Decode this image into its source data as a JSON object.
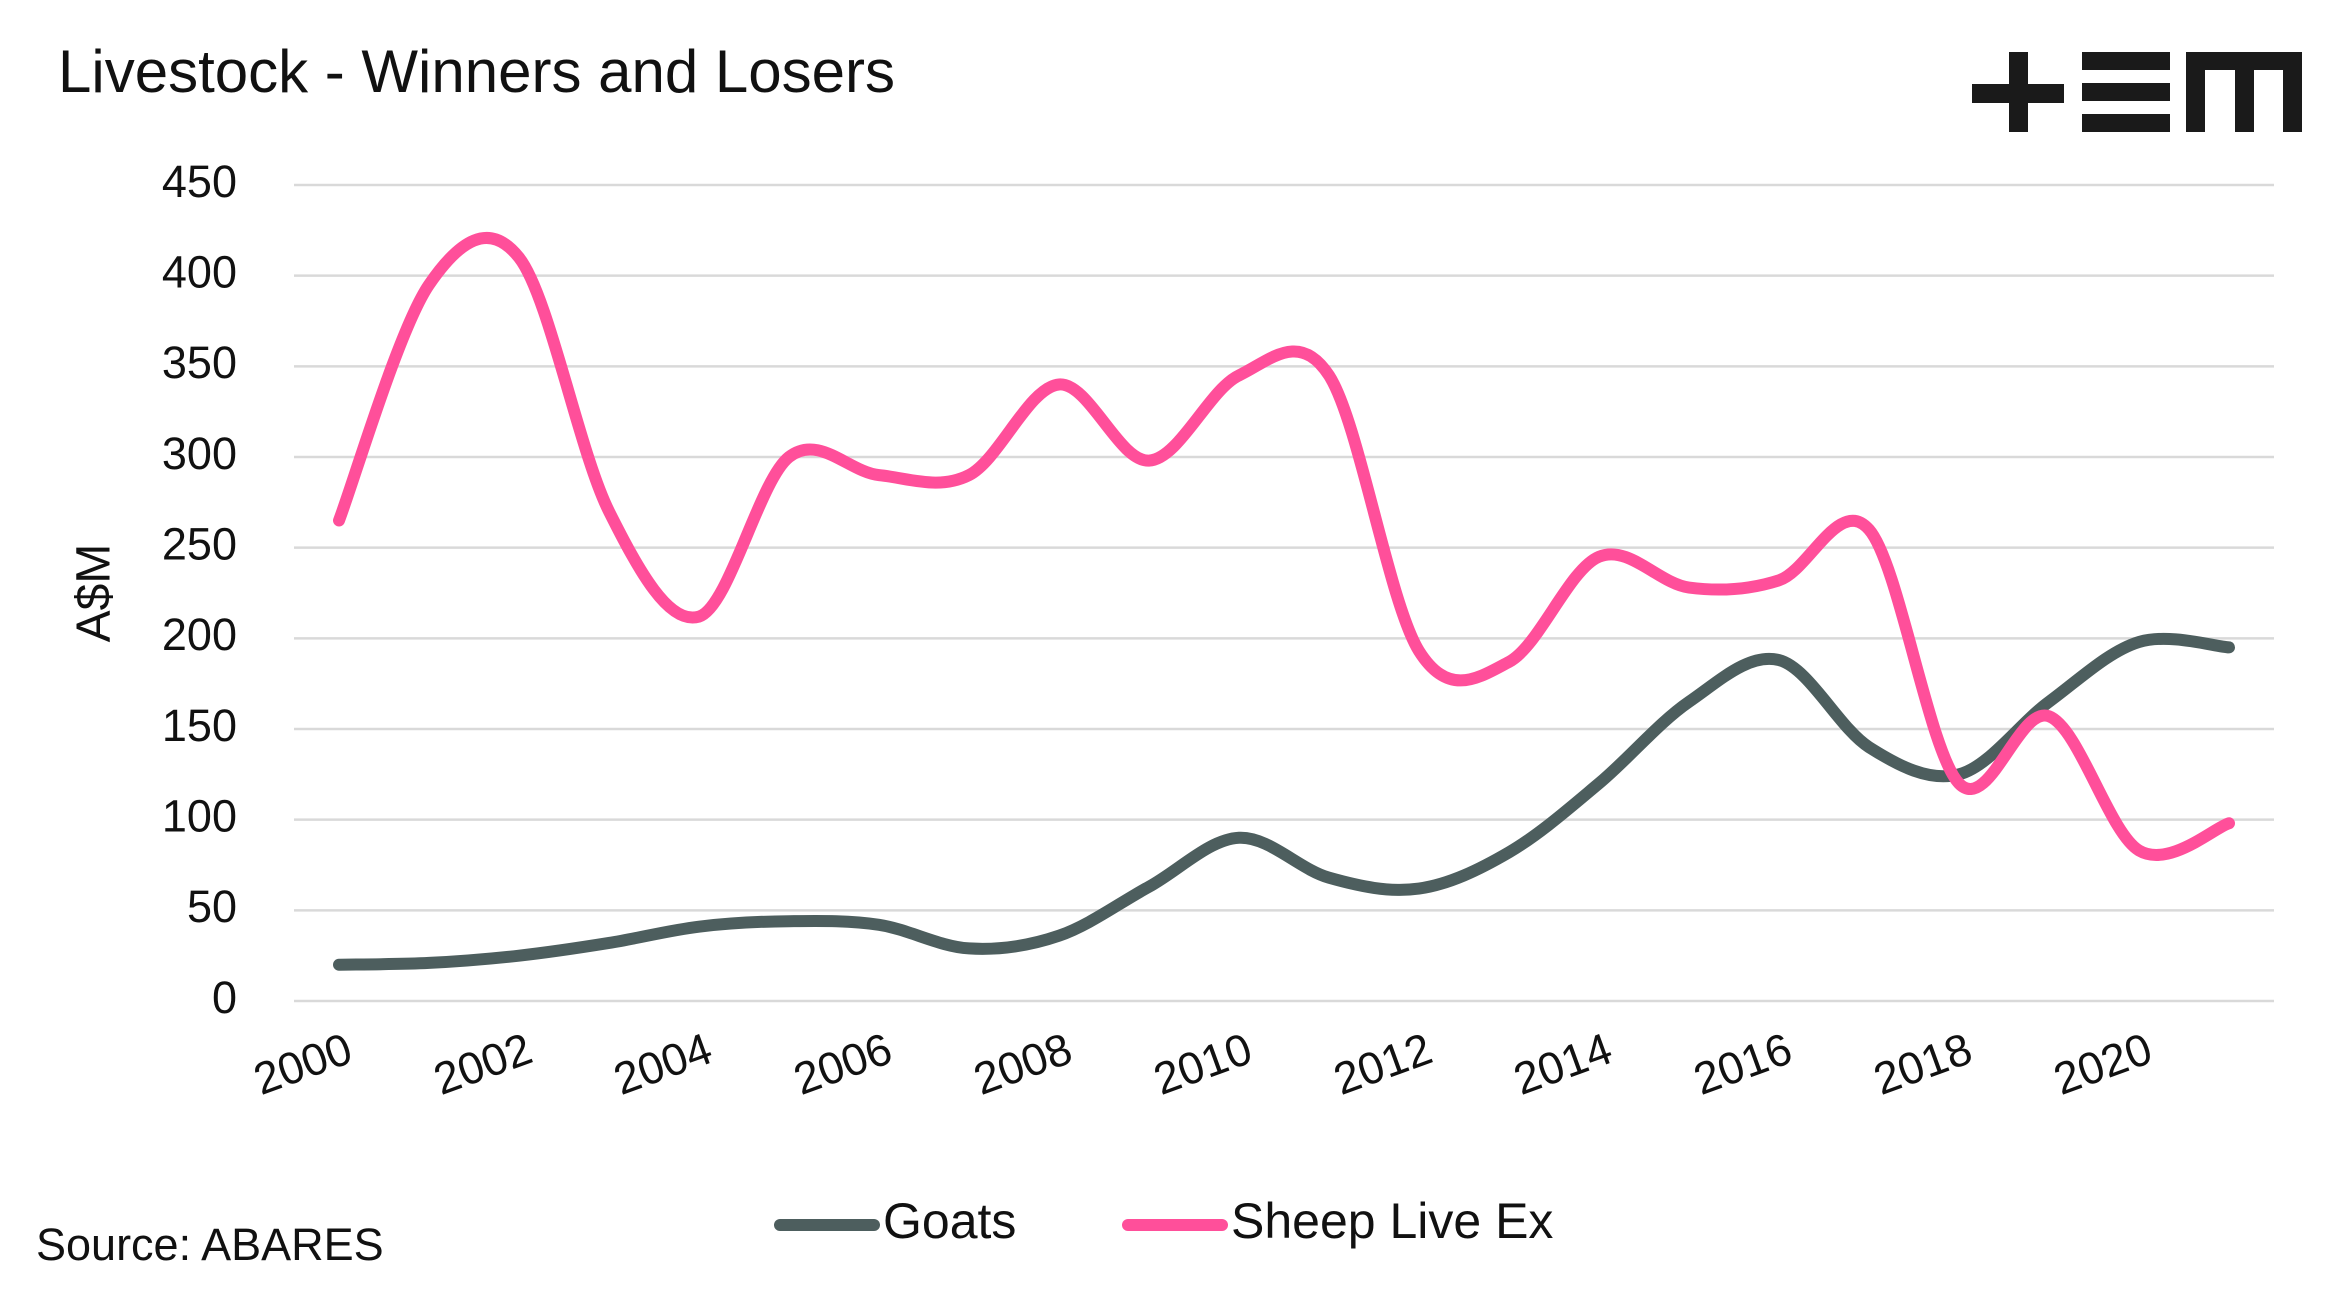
{
  "chart_data": {
    "type": "line",
    "title": "Livestock - Winners and Losers",
    "ylabel": "A$M",
    "source": "Source: ABARES",
    "categories": [
      "2000",
      null,
      "2002",
      null,
      "2004",
      null,
      "2006",
      null,
      "2008",
      null,
      "2010",
      null,
      "2012",
      null,
      "2014",
      null,
      "2016",
      null,
      "2018",
      null,
      "2020",
      null
    ],
    "series": [
      {
        "name": "Goats",
        "color": "#4d5e5e",
        "values": [
          20,
          21,
          25,
          32,
          41,
          44,
          42,
          29,
          36,
          63,
          90,
          68,
          62,
          82,
          120,
          165,
          188,
          140,
          125,
          165,
          198,
          195
        ]
      },
      {
        "name": "Sheep Live Ex",
        "color": "#ff4f9a",
        "values": [
          265,
          395,
          410,
          270,
          212,
          300,
          290,
          290,
          340,
          298,
          345,
          345,
          193,
          187,
          245,
          228,
          232,
          260,
          120,
          157,
          83,
          98
        ]
      }
    ],
    "ylim": [
      0,
      450
    ],
    "yticks": [
      0,
      50,
      100,
      150,
      200,
      250,
      300,
      350,
      400,
      450
    ],
    "grid": true,
    "legend": "bottom"
  }
}
